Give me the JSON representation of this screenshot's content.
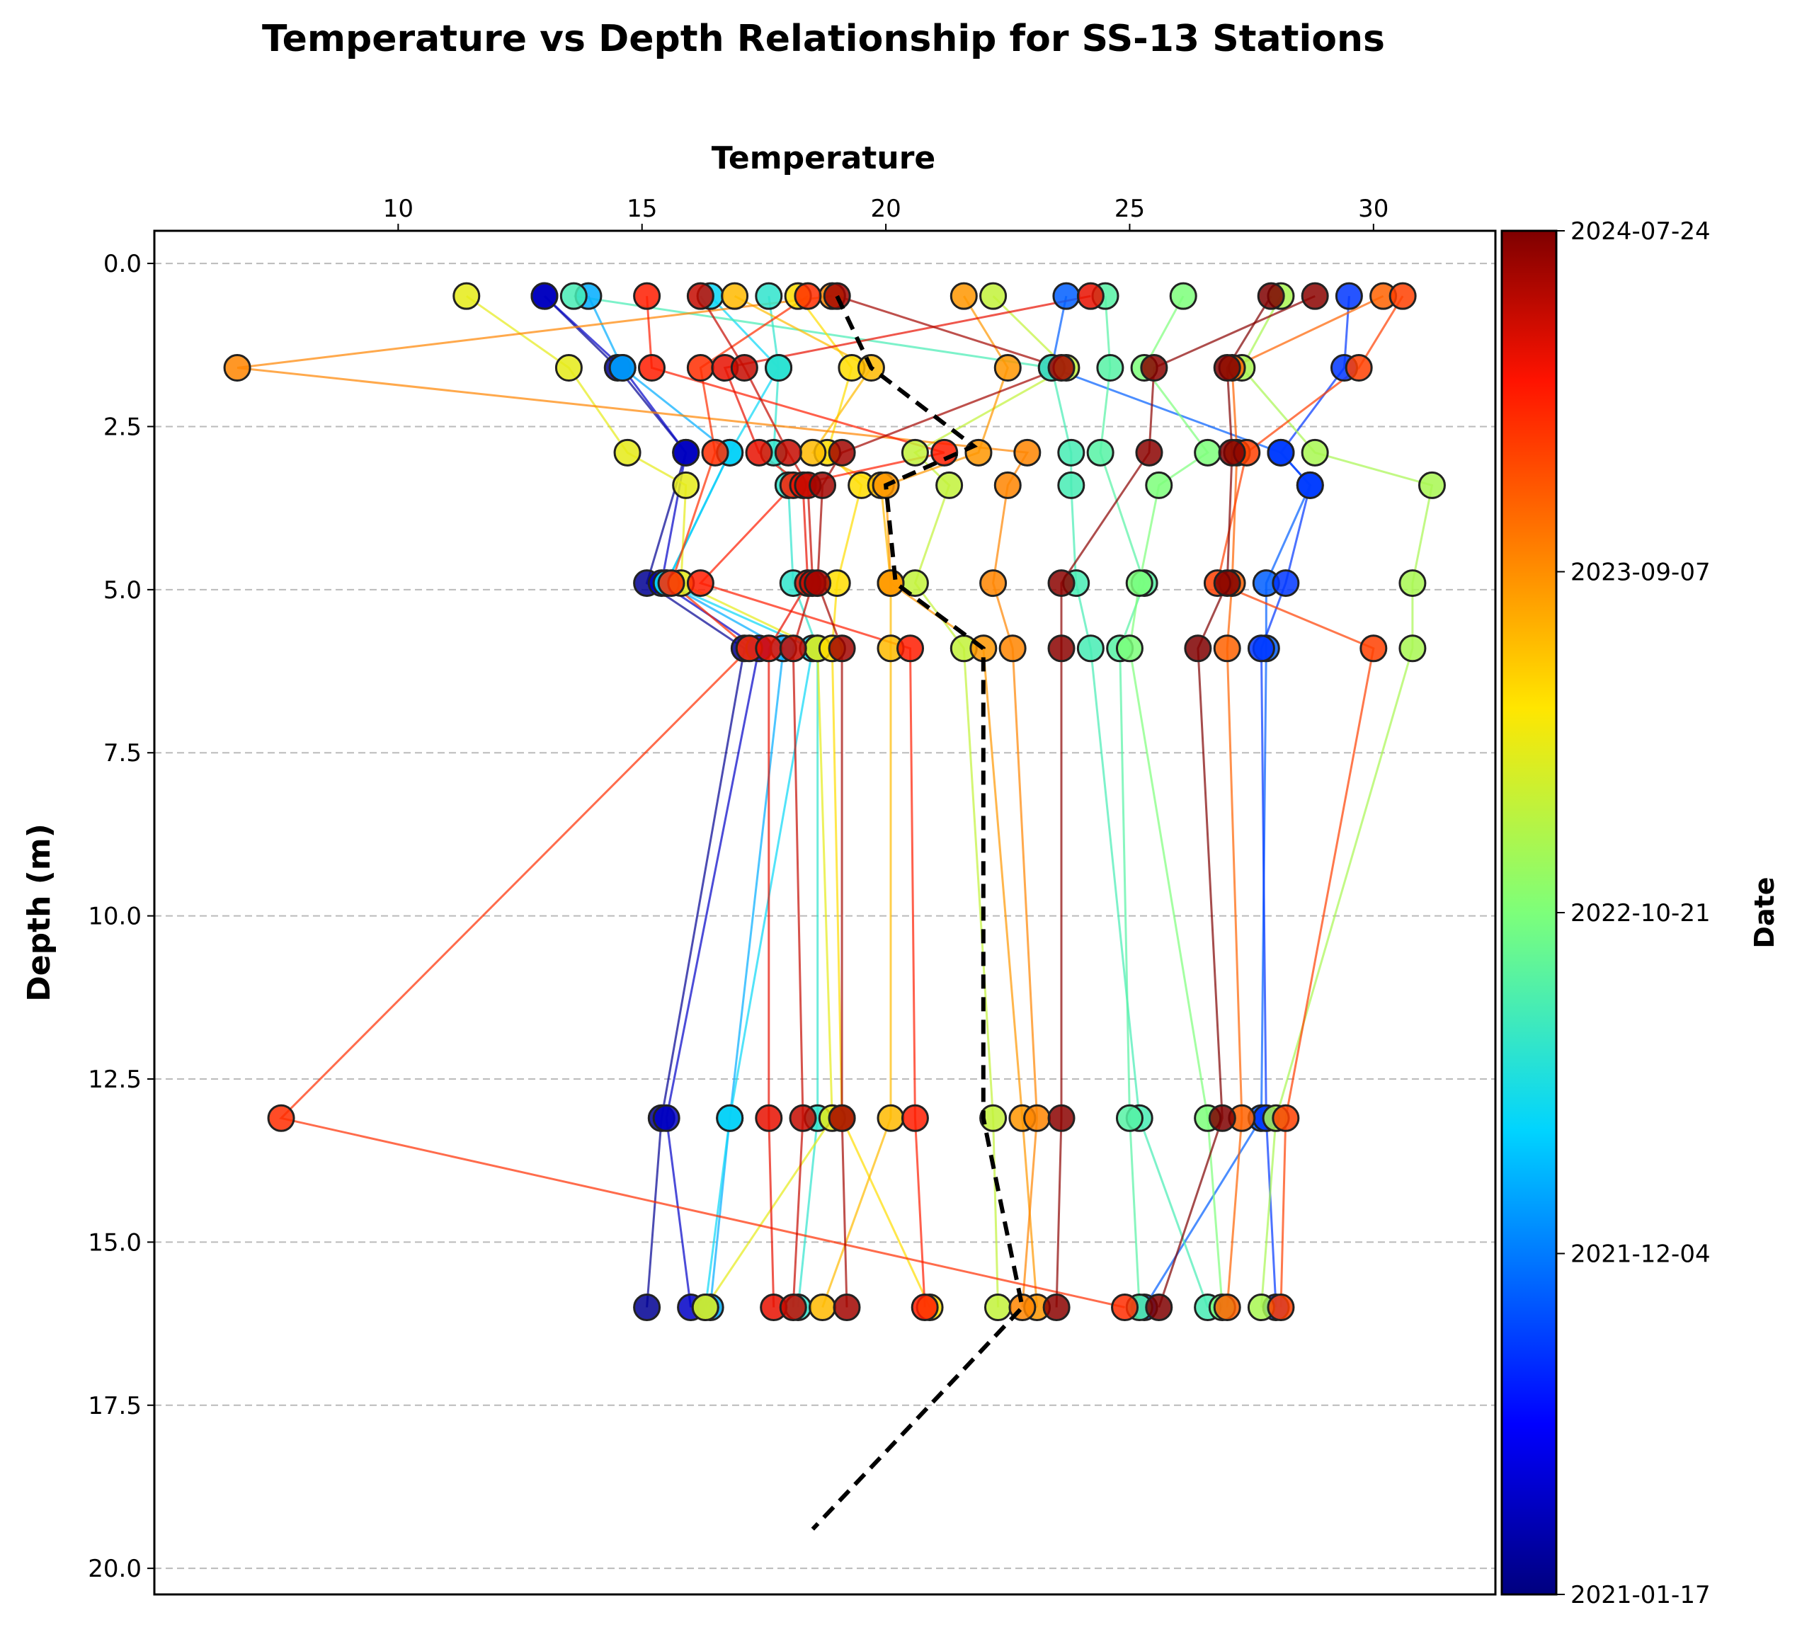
{
  "chart_data": {
    "type": "scatter",
    "title": "Temperature vs Depth Relationship for SS-13 Stations",
    "xlabel": "Temperature",
    "ylabel": "Depth (m)",
    "x_axis_position": "top",
    "y_axis_inverted": true,
    "xlim": [
      5,
      32.5
    ],
    "ylim": [
      20.4,
      -0.5
    ],
    "xticks": [
      10,
      15,
      20,
      25,
      30
    ],
    "yticks": [
      0.0,
      2.5,
      5.0,
      7.5,
      10.0,
      12.5,
      15.0,
      17.5,
      20.0
    ],
    "ytick_labels": [
      "0.0",
      "2.5",
      "5.0",
      "7.5",
      "10.0",
      "12.5",
      "15.0",
      "17.5",
      "20.0"
    ],
    "grid": "y-dashed",
    "colorbar": {
      "label": "Date",
      "colormap": "jet",
      "tick_labels": [
        "2024-07-24",
        "2023-09-07",
        "2022-10-21",
        "2021-12-04",
        "2021-01-17"
      ],
      "tick_fractions": [
        1.0,
        0.75,
        0.5,
        0.25,
        0.0
      ]
    },
    "depths": [
      0.5,
      1.6,
      2.9,
      3.4,
      4.9,
      5.9,
      13.1,
      16.0
    ],
    "profiles": [
      {
        "c": 0.02,
        "t": [
          13.0,
          14.5,
          15.9,
          null,
          15.1,
          17.1,
          15.4,
          15.1
        ]
      },
      {
        "c": 0.07,
        "t": [
          13.0,
          14.6,
          15.9,
          null,
          15.4,
          17.4,
          15.5,
          16.0
        ]
      },
      {
        "c": 0.22,
        "t": [
          23.7,
          23.4,
          28.1,
          28.7,
          27.8,
          27.8,
          27.7,
          25.3
        ]
      },
      {
        "c": 0.18,
        "t": [
          29.5,
          29.4,
          28.1,
          28.7,
          28.2,
          27.7,
          27.8,
          28.0
        ]
      },
      {
        "c": 0.3,
        "t": [
          13.9,
          14.6,
          16.8,
          null,
          15.5,
          17.9,
          16.8,
          16.4
        ]
      },
      {
        "c": 0.35,
        "t": [
          16.4,
          17.8,
          16.8,
          null,
          15.5,
          18.5,
          16.8,
          16.3
        ]
      },
      {
        "c": 0.4,
        "t": [
          17.6,
          17.8,
          17.7,
          18.0,
          18.1,
          18.6,
          18.6,
          18.2
        ]
      },
      {
        "c": 0.43,
        "t": [
          13.6,
          23.4,
          23.8,
          23.8,
          23.9,
          24.2,
          25.2,
          26.6
        ]
      },
      {
        "c": 0.45,
        "t": [
          24.5,
          24.6,
          24.4,
          null,
          25.3,
          24.8,
          25.0,
          25.2
        ]
      },
      {
        "c": 0.5,
        "t": [
          26.1,
          25.3,
          26.6,
          25.6,
          25.2,
          25.0,
          26.6,
          26.9
        ]
      },
      {
        "c": 0.55,
        "t": [
          28.1,
          27.3,
          28.8,
          31.2,
          30.8,
          30.8,
          28.0,
          27.7
        ]
      },
      {
        "c": 0.58,
        "t": [
          22.2,
          23.7,
          20.6,
          21.3,
          20.6,
          21.6,
          22.2,
          22.3
        ]
      },
      {
        "c": 0.62,
        "t": [
          11.4,
          13.5,
          14.7,
          15.9,
          15.8,
          18.6,
          18.9,
          16.3
        ]
      },
      {
        "c": 0.66,
        "t": [
          18.2,
          19.3,
          18.8,
          19.5,
          19.0,
          18.9,
          19.1,
          20.9
        ]
      },
      {
        "c": 0.7,
        "t": [
          16.9,
          19.7,
          18.5,
          19.9,
          20.1,
          20.1,
          20.1,
          18.7
        ]
      },
      {
        "c": 0.74,
        "t": [
          21.6,
          22.5,
          21.9,
          20.0,
          20.1,
          22.0,
          22.8,
          23.1
        ]
      },
      {
        "c": 0.76,
        "t": [
          18.9,
          6.7,
          22.9,
          22.5,
          22.2,
          22.6,
          23.1,
          22.8
        ]
      },
      {
        "c": 0.8,
        "t": [
          30.2,
          27.1,
          27.2,
          null,
          27.1,
          27.0,
          27.3,
          27.0
        ]
      },
      {
        "c": 0.84,
        "t": [
          30.6,
          29.7,
          27.4,
          null,
          26.8,
          30.0,
          28.2,
          28.1
        ]
      },
      {
        "c": 0.86,
        "t": [
          18.4,
          16.2,
          16.5,
          null,
          15.6,
          17.2,
          7.6,
          24.9
        ]
      },
      {
        "c": 0.88,
        "t": [
          15.1,
          15.2,
          21.2,
          18.1,
          16.2,
          20.5,
          20.6,
          20.8
        ]
      },
      {
        "c": 0.91,
        "t": [
          24.2,
          16.7,
          17.4,
          18.3,
          18.4,
          17.6,
          17.6,
          17.7
        ]
      },
      {
        "c": 0.94,
        "t": [
          16.2,
          17.1,
          18.0,
          18.4,
          18.5,
          18.1,
          18.3,
          18.1
        ]
      },
      {
        "c": 0.97,
        "t": [
          19.0,
          23.6,
          19.1,
          18.7,
          18.6,
          19.1,
          19.1,
          19.2
        ]
      },
      {
        "c": 0.99,
        "t": [
          28.8,
          25.5,
          25.4,
          null,
          23.6,
          23.6,
          23.6,
          23.5
        ]
      },
      {
        "c": 1.0,
        "t": [
          27.9,
          27.0,
          27.1,
          null,
          27.0,
          26.4,
          26.9,
          25.6
        ]
      }
    ],
    "mean_profile": {
      "style": "black-dashed",
      "x": [
        19.0,
        19.7,
        21.8,
        20.0,
        20.2,
        22.0,
        22.0,
        22.8,
        18.5
      ],
      "y": [
        0.5,
        1.6,
        2.8,
        3.4,
        4.9,
        5.9,
        13.1,
        16.0,
        19.4
      ]
    }
  }
}
